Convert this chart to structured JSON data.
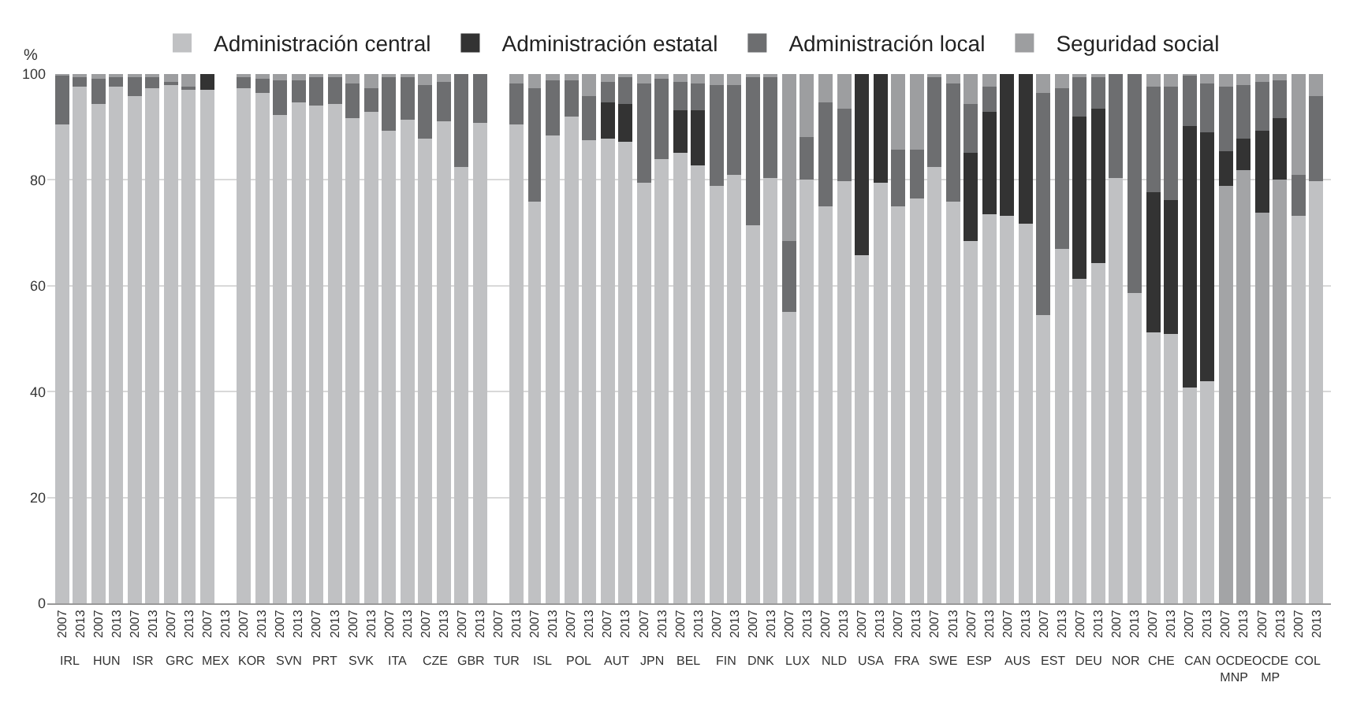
{
  "chart_data": {
    "type": "bar",
    "stacked": true,
    "ylabel": "%",
    "ylim": [
      0,
      100
    ],
    "yticks": [
      0,
      20,
      40,
      60,
      80,
      100
    ],
    "grid": "y",
    "legend": "top",
    "categories": [
      "2007",
      "2013",
      "2007",
      "2013",
      "2007",
      "2013",
      "2007",
      "2013",
      "2007",
      "2013",
      "2007",
      "2013",
      "2007",
      "2013",
      "2007",
      "2013",
      "2007",
      "2013",
      "2007",
      "2013",
      "2007",
      "2013",
      "2007",
      "2013",
      "2007",
      "2013",
      "2007",
      "2013",
      "2007",
      "2013",
      "2007",
      "2013",
      "2007",
      "2013",
      "2007",
      "2013",
      "2007",
      "2013",
      "2007",
      "2013",
      "2007",
      "2013",
      "2007",
      "2013",
      "2007",
      "2013",
      "2007",
      "2013",
      "2007",
      "2013",
      "2007",
      "2013",
      "2007",
      "2013",
      "2007",
      "2013",
      "2007",
      "2013",
      "2007",
      "2013",
      "2007",
      "2013",
      "2007",
      "2013",
      "2007",
      "2013",
      "2007",
      "2013",
      "2007",
      "2013"
    ],
    "annotations": [
      "IRL",
      "HUN",
      "ISR",
      "GRC",
      "MEX",
      "KOR",
      "SVN",
      "PRT",
      "SVK",
      "ITA",
      "CZE",
      "GBR",
      "TUR",
      "ISL",
      "POL",
      "AUT",
      "JPN",
      "BEL",
      "FIN",
      "DNK",
      "LUX",
      "NLD",
      "USA",
      "FRA",
      "SWE",
      "ESP",
      "AUS",
      "EST",
      "DEU",
      "NOR",
      "CHE",
      "CAN",
      "OCDE\nMNP",
      "OCDE\nMP",
      "COL"
    ],
    "series": [
      {
        "name": "Administración central",
        "color": "#c0c1c3",
        "colors": [
          null,
          null,
          null,
          null,
          null,
          null,
          null,
          null,
          null,
          null,
          null,
          null,
          null,
          null,
          null,
          null,
          null,
          null,
          null,
          null,
          null,
          null,
          null,
          null,
          null,
          null,
          null,
          null,
          null,
          null,
          null,
          null,
          null,
          null,
          null,
          null,
          null,
          null,
          null,
          null,
          null,
          null,
          null,
          null,
          null,
          null,
          null,
          null,
          null,
          null,
          null,
          null,
          null,
          null,
          null,
          null,
          null,
          null,
          null,
          null,
          null,
          null,
          null,
          null,
          "#a3a4a6",
          "#a3a4a6",
          "#a3a4a6",
          "#a3a4a6",
          null,
          null
        ],
        "values": [
          90.5,
          97.5,
          94.3,
          97.6,
          95.8,
          97.2,
          97.9,
          97,
          96.9,
          null,
          97.2,
          96.4,
          92.3,
          94.5,
          94.1,
          94.2,
          91.7,
          92.9,
          89.4,
          91.5,
          87.7,
          91.2,
          82.5,
          90.8,
          null,
          90.6,
          75.9,
          88.4,
          92,
          87.5,
          87.7,
          87.3,
          79.5,
          83.8,
          85.1,
          82.8,
          78.8,
          80.9,
          71.4,
          80.4,
          55,
          80,
          75,
          79.9,
          65.8,
          79.4,
          75,
          76.6,
          82.3,
          75.9,
          68.6,
          73.6,
          73.3,
          71.7,
          54.5,
          66.9,
          61.3,
          64.2,
          80.4,
          58.7,
          51.2,
          50.9,
          40.8,
          42,
          79,
          81.8,
          73.9,
          80.2,
          73.1,
          79.7
        ]
      },
      {
        "name": "Administración estatal",
        "color": "#333333",
        "values": [
          0,
          0,
          0,
          0,
          0,
          0,
          0,
          0,
          3.1,
          null,
          0,
          0,
          0,
          0,
          0,
          0,
          0,
          0,
          0,
          0,
          0,
          0,
          0,
          0,
          null,
          0,
          0,
          0,
          0,
          0,
          6.9,
          7.1,
          0,
          0,
          8,
          10.4,
          0,
          0,
          0,
          0,
          0,
          0,
          0,
          0,
          34.2,
          20.6,
          0,
          0,
          0,
          0,
          16.5,
          19.3,
          26.7,
          28.3,
          0,
          0,
          30.8,
          29.2,
          0,
          0,
          26.6,
          25.2,
          49.4,
          46.9,
          6.4,
          5.9,
          15.5,
          11.6,
          0,
          0
        ]
      },
      {
        "name": "Administración local",
        "color": "#6d6e70",
        "values": [
          9.3,
          2.2,
          4.9,
          2.1,
          3.8,
          2.5,
          0.7,
          0.7,
          0,
          null,
          2.2,
          2.8,
          6.5,
          4.2,
          5.5,
          5.4,
          6.4,
          4.5,
          9.9,
          8,
          10.1,
          7.4,
          17.5,
          9.2,
          null,
          7.5,
          21.5,
          10.4,
          6.8,
          8.3,
          4,
          5,
          18.6,
          15.3,
          5.5,
          4.9,
          19.1,
          16.9,
          28.1,
          19.3,
          13.4,
          8.2,
          19.6,
          13.7,
          0,
          0,
          10.8,
          9,
          17.1,
          22.4,
          9.2,
          4.7,
          0,
          0,
          41.9,
          30.3,
          7.6,
          6.3,
          19.6,
          41.3,
          19.7,
          21.5,
          9.7,
          9.2,
          12.1,
          10.1,
          9.1,
          7,
          8,
          16.2
        ]
      },
      {
        "name": "Seguridad social",
        "color": "#9d9ea0",
        "values": [
          0.2,
          0.3,
          0.8,
          0.3,
          0.4,
          0.3,
          1.4,
          2.3,
          0,
          null,
          0.6,
          0.8,
          1.2,
          1.3,
          0.4,
          0.4,
          1.9,
          2.6,
          0.7,
          0.5,
          2.2,
          1.4,
          0,
          0,
          null,
          1.9,
          2.6,
          1.2,
          1.2,
          4.2,
          1.4,
          0.6,
          1.9,
          0.9,
          1.4,
          1.9,
          2.1,
          2.2,
          0.5,
          0.3,
          31.6,
          11.8,
          5.4,
          6.4,
          0,
          0,
          14.2,
          14.4,
          0.6,
          1.7,
          5.7,
          2.4,
          0,
          0,
          3.6,
          2.8,
          0.3,
          0.3,
          0,
          0,
          2.5,
          2.4,
          0.1,
          1.9,
          2.5,
          2.2,
          1.5,
          1.2,
          18.9,
          4.1
        ]
      }
    ]
  }
}
